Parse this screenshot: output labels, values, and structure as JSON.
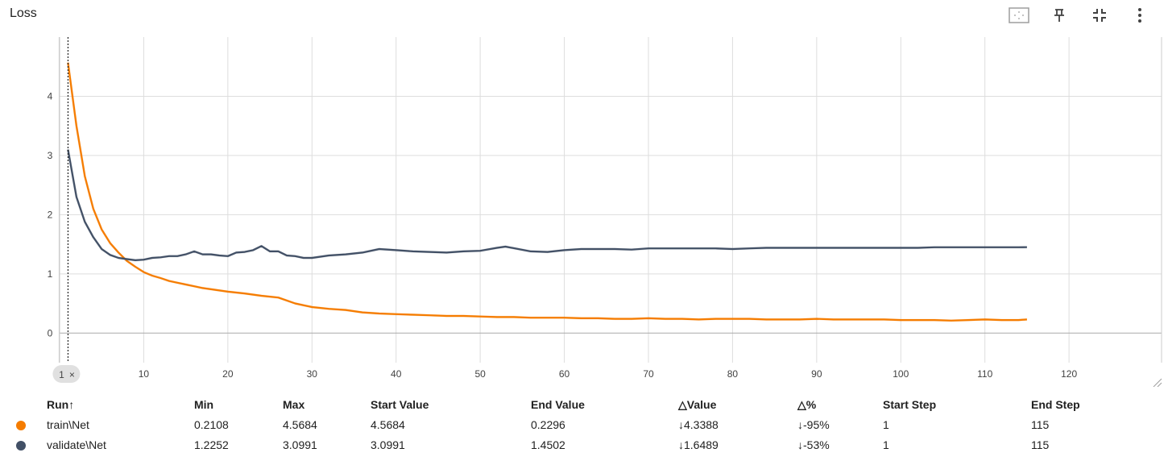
{
  "card": {
    "title": "Loss",
    "icons": [
      "fit-domain-icon",
      "pin-icon",
      "collapse-icon",
      "more-vert-icon"
    ]
  },
  "chart_data": {
    "type": "line",
    "x_ticks": [
      "10",
      "20",
      "30",
      "40",
      "50",
      "60",
      "70",
      "80",
      "90",
      "100",
      "110",
      "120"
    ],
    "y_ticks": [
      "0",
      "1",
      "2",
      "3",
      "4"
    ],
    "xlim": [
      0,
      131
    ],
    "ylim": [
      -0.5,
      5
    ],
    "cursor_label": "1",
    "grid": true,
    "series": [
      {
        "name": "train\\Net",
        "color": "#f57c00",
        "x": [
          1,
          2,
          3,
          4,
          5,
          6,
          7,
          8,
          9,
          10,
          11,
          12,
          13,
          14,
          15,
          16,
          17,
          18,
          19,
          20,
          22,
          24,
          26,
          28,
          30,
          32,
          34,
          36,
          38,
          40,
          42,
          44,
          46,
          48,
          50,
          52,
          54,
          56,
          58,
          60,
          62,
          64,
          66,
          68,
          70,
          72,
          74,
          76,
          78,
          80,
          82,
          84,
          86,
          88,
          90,
          92,
          94,
          96,
          98,
          100,
          102,
          104,
          106,
          108,
          110,
          112,
          114,
          115
        ],
        "y": [
          4.5684,
          3.5,
          2.65,
          2.1,
          1.75,
          1.52,
          1.36,
          1.22,
          1.12,
          1.03,
          0.97,
          0.93,
          0.88,
          0.85,
          0.82,
          0.79,
          0.76,
          0.74,
          0.72,
          0.7,
          0.67,
          0.63,
          0.6,
          0.5,
          0.44,
          0.41,
          0.39,
          0.35,
          0.33,
          0.32,
          0.31,
          0.3,
          0.29,
          0.29,
          0.28,
          0.27,
          0.27,
          0.26,
          0.26,
          0.26,
          0.25,
          0.25,
          0.24,
          0.24,
          0.25,
          0.24,
          0.24,
          0.23,
          0.24,
          0.24,
          0.24,
          0.23,
          0.23,
          0.23,
          0.24,
          0.23,
          0.23,
          0.23,
          0.23,
          0.22,
          0.22,
          0.22,
          0.21,
          0.22,
          0.23,
          0.22,
          0.22,
          0.2296
        ]
      },
      {
        "name": "validate\\Net",
        "color": "#425066",
        "x": [
          1,
          2,
          3,
          4,
          5,
          6,
          7,
          8,
          9,
          10,
          11,
          12,
          13,
          14,
          15,
          16,
          17,
          18,
          19,
          20,
          21,
          22,
          23,
          24,
          25,
          26,
          27,
          28,
          29,
          30,
          32,
          34,
          36,
          38,
          40,
          42,
          44,
          46,
          48,
          50,
          52,
          53,
          56,
          58,
          60,
          62,
          64,
          66,
          68,
          70,
          72,
          74,
          76,
          78,
          80,
          82,
          84,
          86,
          88,
          90,
          92,
          94,
          96,
          98,
          100,
          102,
          104,
          106,
          108,
          110,
          112,
          114,
          115
        ],
        "y": [
          3.0991,
          2.3,
          1.88,
          1.62,
          1.42,
          1.32,
          1.27,
          1.25,
          1.23,
          1.24,
          1.27,
          1.28,
          1.3,
          1.3,
          1.33,
          1.38,
          1.33,
          1.33,
          1.31,
          1.3,
          1.36,
          1.37,
          1.4,
          1.47,
          1.38,
          1.38,
          1.31,
          1.3,
          1.27,
          1.27,
          1.31,
          1.33,
          1.36,
          1.42,
          1.4,
          1.38,
          1.37,
          1.36,
          1.38,
          1.39,
          1.44,
          1.46,
          1.38,
          1.37,
          1.4,
          1.42,
          1.42,
          1.42,
          1.41,
          1.43,
          1.43,
          1.43,
          1.43,
          1.43,
          1.42,
          1.43,
          1.44,
          1.44,
          1.44,
          1.44,
          1.44,
          1.44,
          1.44,
          1.44,
          1.44,
          1.44,
          1.45,
          1.45,
          1.45,
          1.45,
          1.45,
          1.45,
          1.4502
        ]
      }
    ]
  },
  "table": {
    "headers": [
      "Run",
      "Min",
      "Max",
      "Start Value",
      "End Value",
      "Value",
      "%",
      "Start Step",
      "End Step"
    ],
    "sort_glyph": "↑",
    "delta_glyph": "△",
    "rows": [
      {
        "color": "#f57c00",
        "run": "train\\Net",
        "min": "0.2108",
        "max": "4.5684",
        "start": "4.5684",
        "end": "0.2296",
        "dvalue": "↓4.3388",
        "dpct": "↓-95%",
        "start_step": "1",
        "end_step": "115"
      },
      {
        "color": "#425066",
        "run": "validate\\Net",
        "min": "1.2252",
        "max": "3.0991",
        "start": "3.0991",
        "end": "1.4502",
        "dvalue": "↓1.6489",
        "dpct": "↓-53%",
        "start_step": "1",
        "end_step": "115"
      }
    ]
  }
}
